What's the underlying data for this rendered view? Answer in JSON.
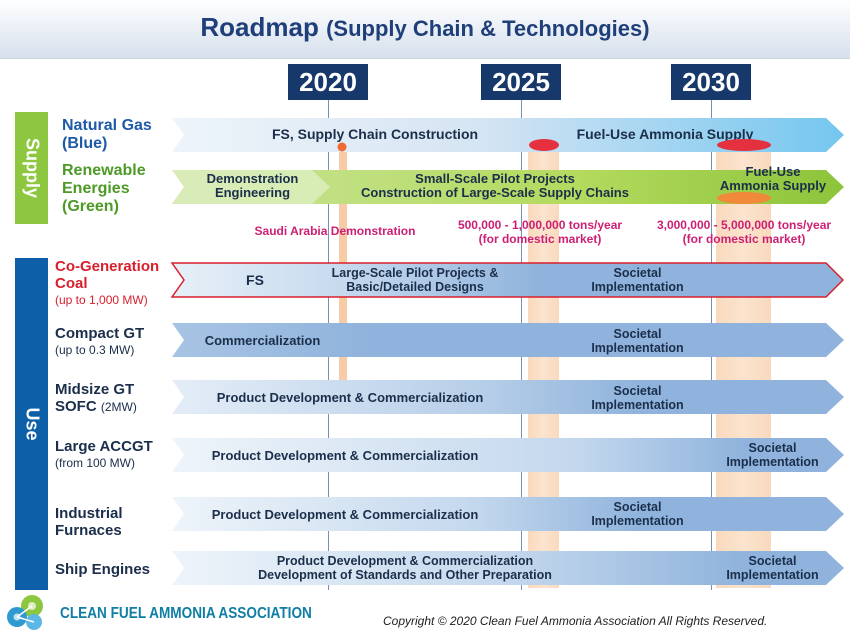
{
  "header": {
    "title": "Roadmap",
    "subtitle": "(Supply Chain & Technologies)"
  },
  "years": [
    "2020",
    "2025",
    "2030"
  ],
  "sections": {
    "supply": "Supply",
    "use": "Use"
  },
  "supply_rows": {
    "natural_gas": {
      "name": "Natural Gas",
      "sub": "(Blue)",
      "phase1": "FS, Supply Chain Construction",
      "phase2": "Fuel-Use Ammonia Supply"
    },
    "renewable": {
      "name1": "Renewable",
      "name2": "Energies",
      "sub": "(Green)",
      "phase1_line1": "Demonstration",
      "phase1_line2": "Engineering",
      "phase2_line1": "Small-Scale Pilot Projects",
      "phase2_line2": "Construction of Large-Scale Supply Chains",
      "phase3_line1": "Fuel-Use",
      "phase3_line2": "Ammonia Supply"
    }
  },
  "annotations": {
    "saudi": "Saudi Arabia Demonstration",
    "target_2025_line1": "500,000 - 1,000,000 tons/year",
    "target_2025_line2": "(for domestic market)",
    "target_2030_line1": "3,000,000 - 5,000,000 tons/year",
    "target_2030_line2": "(for domestic market)"
  },
  "use_rows": {
    "cogen": {
      "name1": "Co-Generation",
      "name2": "Coal",
      "note": "(up to 1,000 MW)",
      "phase1": "FS",
      "phase2_line1": "Large-Scale Pilot Projects &",
      "phase2_line2": "Basic/Detailed Designs",
      "phase3_line1": "Societal",
      "phase3_line2": "Implementation"
    },
    "compact_gt": {
      "name": "Compact GT",
      "note": "(up to 0.3 MW)",
      "phase1": "Commercialization",
      "phase2_line1": "Societal",
      "phase2_line2": "Implementation"
    },
    "midsize_gt": {
      "name1": "Midsize GT",
      "name2": "SOFC",
      "note": "(2MW)",
      "phase1": "Product Development & Commercialization",
      "phase2_line1": "Societal",
      "phase2_line2": "Implementation"
    },
    "large_accgt": {
      "name": "Large ACCGT",
      "note": "(from 100 MW)",
      "phase1": "Product Development & Commercialization",
      "phase2_line1": "Societal",
      "phase2_line2": "Implementation"
    },
    "industrial": {
      "name1": "Industrial",
      "name2": "Furnaces",
      "phase1": "Product Development & Commercialization",
      "phase2_line1": "Societal",
      "phase2_line2": "Implementation"
    },
    "ship": {
      "name": "Ship Engines",
      "phase1_line1": "Product Development & Commercialization",
      "phase1_line2": "Development of Standards and Other Preparation",
      "phase2_line1": "Societal",
      "phase2_line2": "Implementation"
    }
  },
  "footer": {
    "organization": "CLEAN FUEL AMMONIA ASSOCIATION",
    "copyright": "Copyright © 2020 Clean Fuel Ammonia Association All Rights Reserved."
  },
  "colors": {
    "title": "#1f3f7a",
    "year_box": "#17386b",
    "supply_label": "#8dc63f",
    "use_label": "#0d5fa8",
    "blue_label": "#1e5aa8",
    "green_label": "#4d9a26",
    "coal_label": "#d7202c",
    "arrow_blue": "#8fb3dc",
    "arrow_light": "#dde9f4",
    "arrow_green": "#9ccf3c",
    "milestone": "#f4ba88",
    "annotation": "#cc1f73",
    "org_text": "#0f7ea3"
  }
}
